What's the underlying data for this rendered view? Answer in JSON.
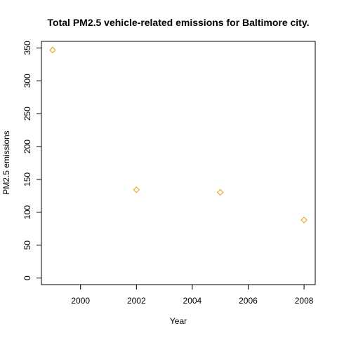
{
  "chart_data": {
    "type": "scatter",
    "title": "Total PM2.5 vehicle-related emissions for Baltimore city.",
    "xlabel": "Year",
    "ylabel": "PM2.5 emissions",
    "x": [
      1999,
      2002,
      2005,
      2008
    ],
    "y": [
      346.8,
      134.3,
      130.4,
      88.3
    ],
    "xlim": [
      1998.6,
      2008.4
    ],
    "ylim": [
      -10,
      360
    ],
    "xticks": [
      2000,
      2002,
      2004,
      2006,
      2008
    ],
    "yticks": [
      0,
      50,
      100,
      150,
      200,
      250,
      300,
      350
    ],
    "marker": "diamond-open",
    "point_color": "#E69F00",
    "grid": false,
    "legend": "none"
  }
}
